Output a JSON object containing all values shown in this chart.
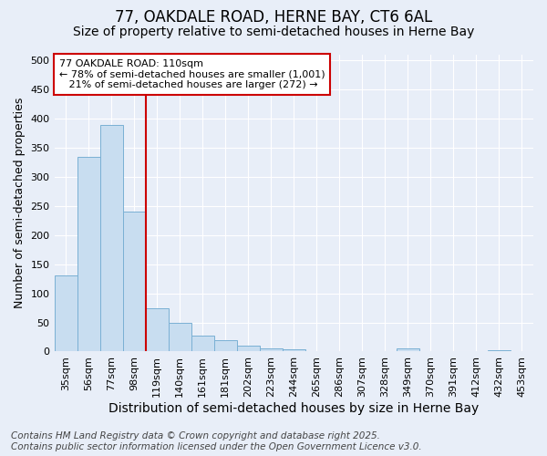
{
  "title1": "77, OAKDALE ROAD, HERNE BAY, CT6 6AL",
  "title2": "Size of property relative to semi-detached houses in Herne Bay",
  "xlabel": "Distribution of semi-detached houses by size in Herne Bay",
  "ylabel": "Number of semi-detached properties",
  "categories": [
    "35sqm",
    "56sqm",
    "77sqm",
    "98sqm",
    "119sqm",
    "140sqm",
    "161sqm",
    "181sqm",
    "202sqm",
    "223sqm",
    "244sqm",
    "265sqm",
    "286sqm",
    "307sqm",
    "328sqm",
    "349sqm",
    "370sqm",
    "391sqm",
    "412sqm",
    "432sqm",
    "453sqm"
  ],
  "values": [
    130,
    335,
    390,
    240,
    75,
    50,
    28,
    20,
    10,
    5,
    4,
    0,
    0,
    0,
    0,
    5,
    0,
    0,
    0,
    3,
    0
  ],
  "bar_color": "#c8ddf0",
  "bar_edge_color": "#7ab0d4",
  "vline_color": "#cc0000",
  "annotation_line1": "77 OAKDALE ROAD: 110sqm",
  "annotation_line2": "← 78% of semi-detached houses are smaller (1,001)",
  "annotation_line3": "   21% of semi-detached houses are larger (272) →",
  "annotation_box_color": "#ffffff",
  "annotation_box_edge": "#cc0000",
  "ylim": [
    0,
    510
  ],
  "yticks": [
    0,
    50,
    100,
    150,
    200,
    250,
    300,
    350,
    400,
    450,
    500
  ],
  "background_color": "#e8eef8",
  "grid_color": "#ffffff",
  "footer_text": "Contains HM Land Registry data © Crown copyright and database right 2025.\nContains public sector information licensed under the Open Government Licence v3.0.",
  "title1_fontsize": 12,
  "title2_fontsize": 10,
  "xlabel_fontsize": 10,
  "ylabel_fontsize": 9,
  "tick_fontsize": 8,
  "footer_fontsize": 7.5,
  "ann_fontsize": 8
}
